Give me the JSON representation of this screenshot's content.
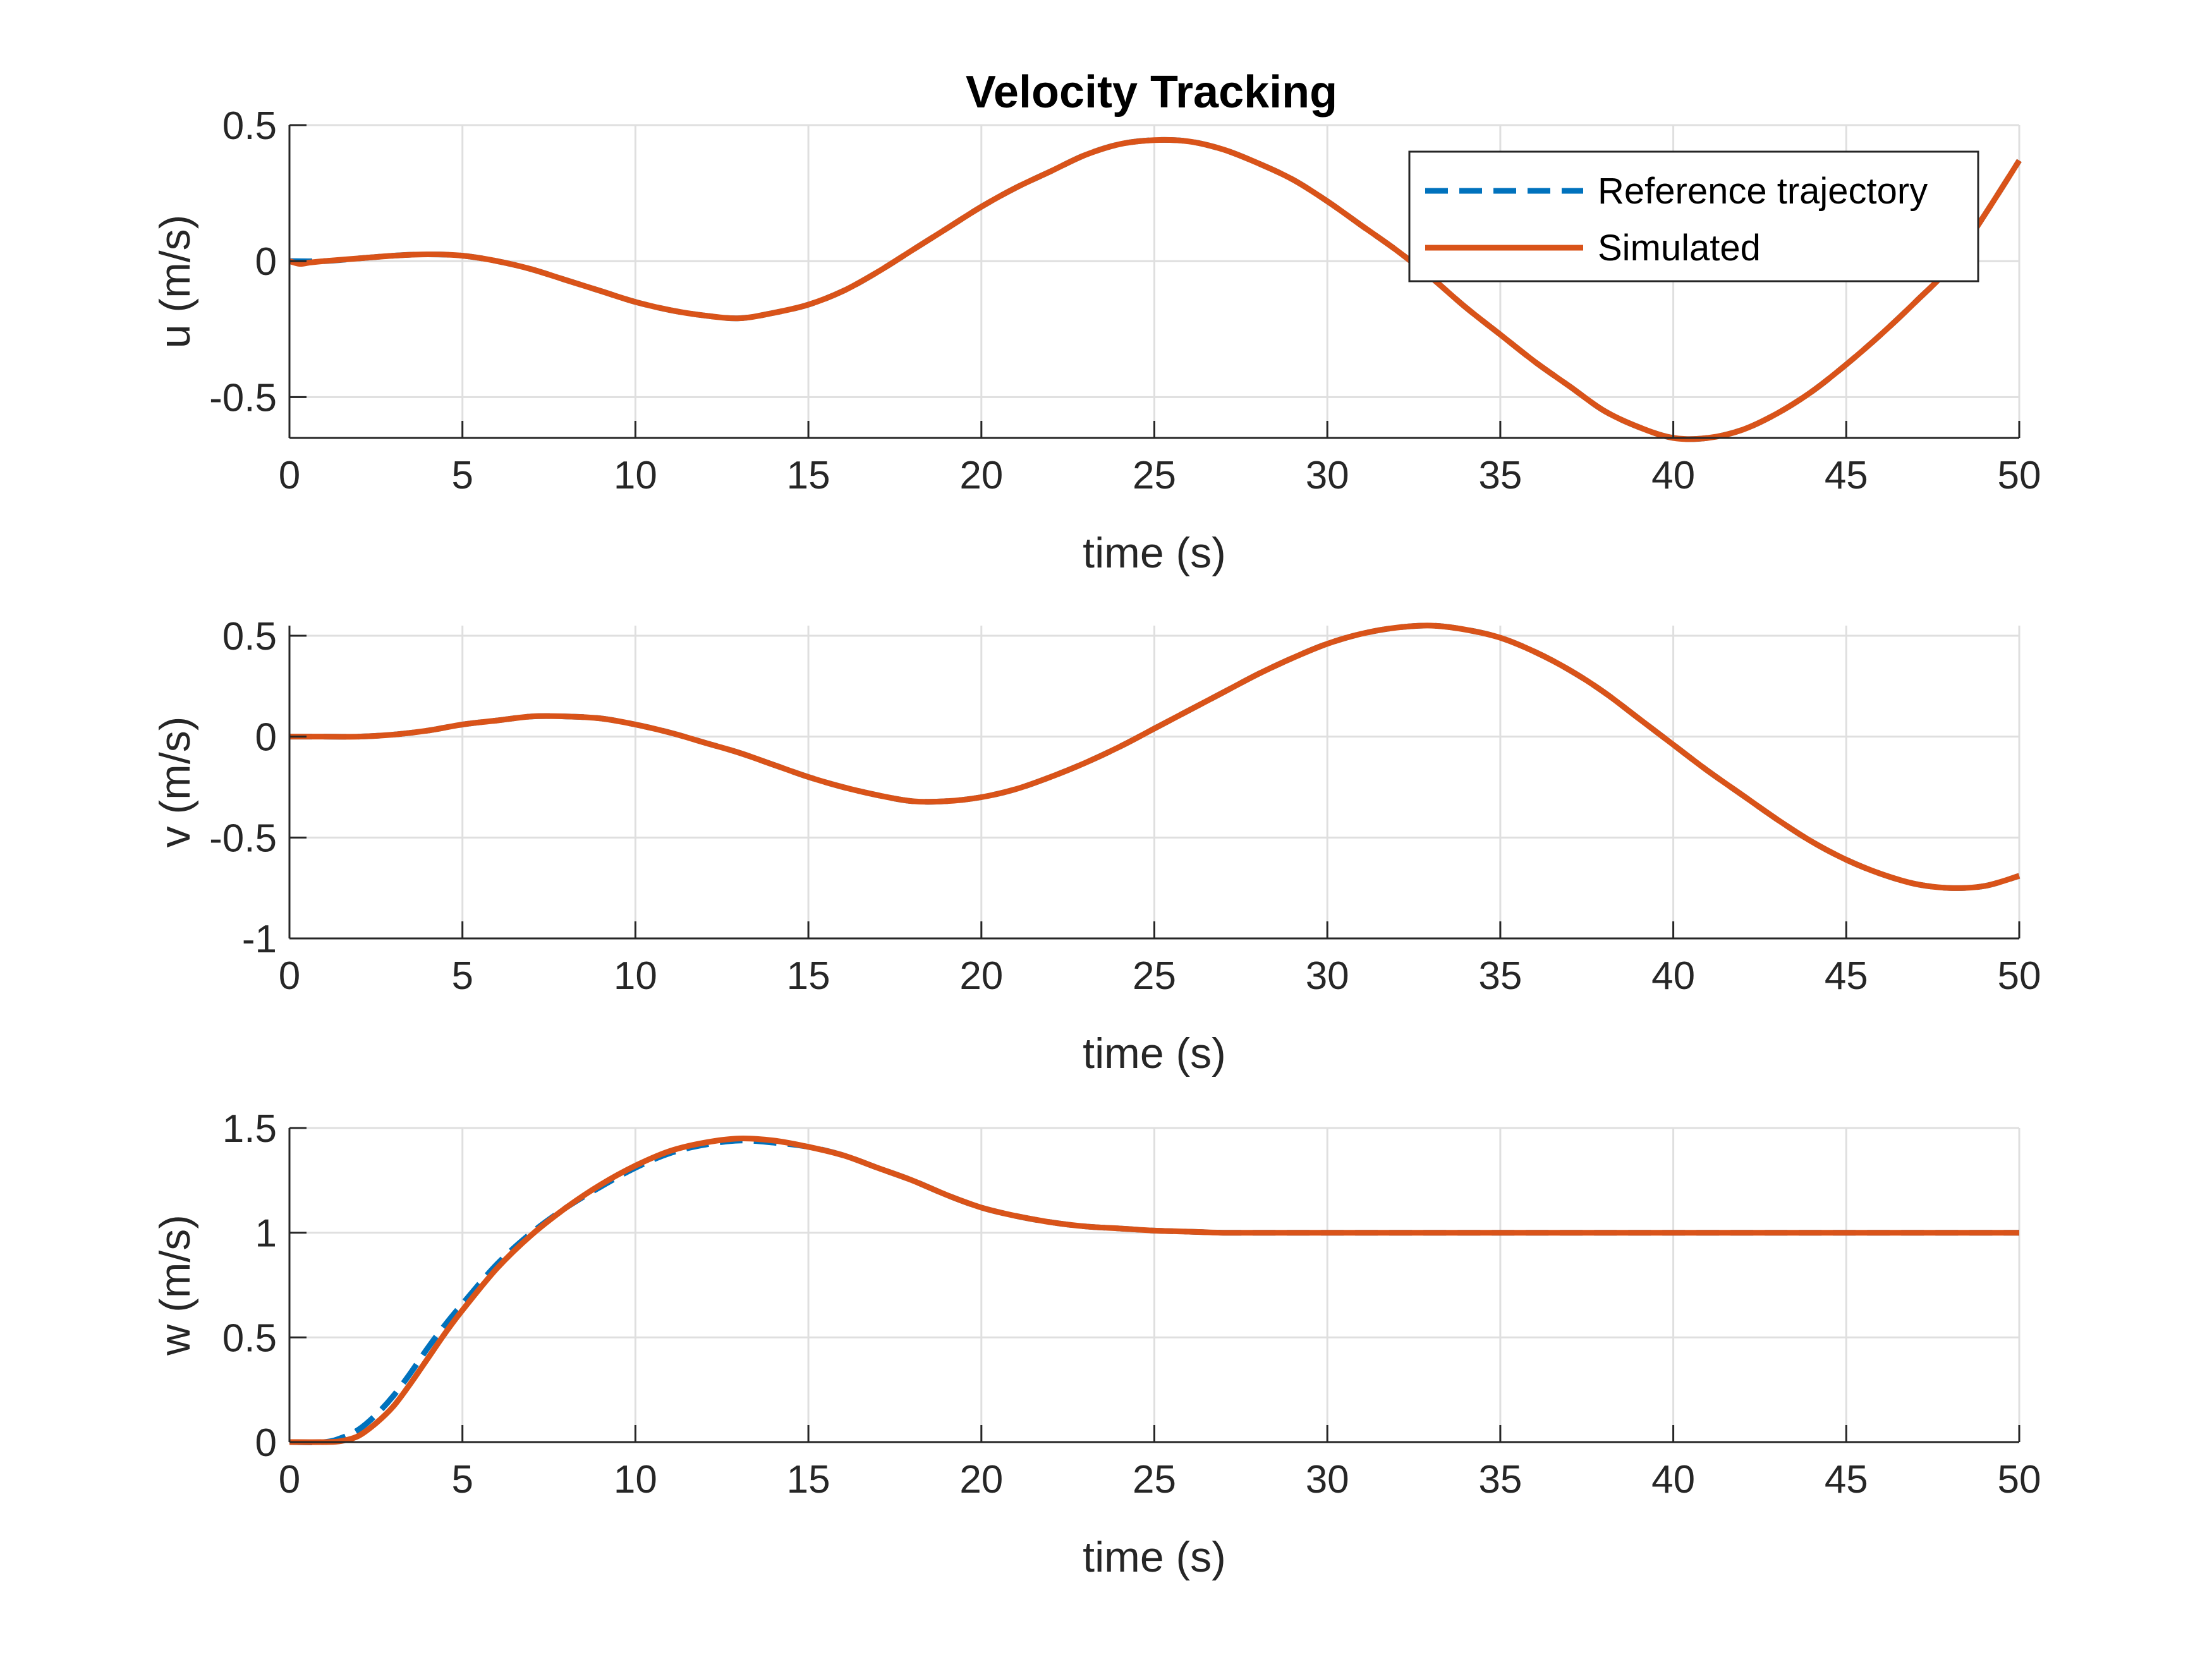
{
  "chart_data": [
    {
      "type": "line",
      "title": "Velocity Tracking",
      "xlabel": "time (s)",
      "ylabel": "u (m/s)",
      "xlim": [
        0,
        50
      ],
      "ylim": [
        -0.65,
        0.5
      ],
      "xticks": [
        "0",
        "5",
        "10",
        "15",
        "20",
        "25",
        "30",
        "35",
        "40",
        "45",
        "50"
      ],
      "yticks": [
        {
          "value": -0.5,
          "label": "-0.5"
        },
        {
          "value": 0,
          "label": "0"
        },
        {
          "value": 0.5,
          "label": "0.5"
        }
      ],
      "grid": true,
      "legend": {
        "placement": "top-right",
        "entries": [
          "Reference trajectory",
          "Simulated"
        ]
      },
      "series": [
        {
          "name": "Reference trajectory",
          "color": "#0072BD",
          "style": "dashed",
          "x": [
            0,
            1,
            2,
            3,
            4,
            5,
            6,
            7,
            8,
            9,
            10,
            11,
            12,
            13,
            14,
            15,
            16,
            17,
            18,
            19,
            20,
            21,
            22,
            23,
            24,
            25,
            26,
            27,
            28,
            29,
            30,
            31,
            32,
            33,
            34,
            35,
            36,
            37,
            38,
            39,
            40,
            41,
            42,
            43,
            44,
            45,
            46,
            47,
            48,
            49,
            50
          ],
          "y": [
            0,
            0.0,
            0.01,
            0.02,
            0.025,
            0.02,
            0.0,
            -0.03,
            -0.07,
            -0.11,
            -0.15,
            -0.18,
            -0.2,
            -0.21,
            -0.19,
            -0.16,
            -0.11,
            -0.04,
            0.04,
            0.12,
            0.2,
            0.27,
            0.33,
            0.39,
            0.43,
            0.445,
            0.44,
            0.41,
            0.36,
            0.3,
            0.22,
            0.13,
            0.04,
            -0.06,
            -0.17,
            -0.27,
            -0.37,
            -0.46,
            -0.55,
            -0.61,
            -0.65,
            -0.65,
            -0.62,
            -0.56,
            -0.48,
            -0.38,
            -0.27,
            -0.15,
            -0.02,
            0.17,
            0.37
          ]
        },
        {
          "name": "Simulated",
          "color": "#D95319",
          "style": "solid",
          "x": [
            0,
            0.3,
            0.6,
            1,
            2,
            3,
            4,
            5,
            6,
            7,
            8,
            9,
            10,
            11,
            12,
            13,
            14,
            15,
            16,
            17,
            18,
            19,
            20,
            21,
            22,
            23,
            24,
            25,
            26,
            27,
            28,
            29,
            30,
            31,
            32,
            33,
            34,
            35,
            36,
            37,
            38,
            39,
            40,
            41,
            42,
            43,
            44,
            45,
            46,
            47,
            48,
            49,
            50
          ],
          "y": [
            0,
            -0.01,
            -0.005,
            0.0,
            0.01,
            0.02,
            0.025,
            0.02,
            0.0,
            -0.03,
            -0.07,
            -0.11,
            -0.15,
            -0.18,
            -0.2,
            -0.21,
            -0.19,
            -0.16,
            -0.11,
            -0.04,
            0.04,
            0.12,
            0.2,
            0.27,
            0.33,
            0.39,
            0.43,
            0.445,
            0.44,
            0.41,
            0.36,
            0.3,
            0.22,
            0.13,
            0.04,
            -0.06,
            -0.17,
            -0.27,
            -0.37,
            -0.46,
            -0.55,
            -0.61,
            -0.65,
            -0.65,
            -0.62,
            -0.56,
            -0.48,
            -0.38,
            -0.27,
            -0.15,
            -0.02,
            0.17,
            0.37
          ]
        }
      ]
    },
    {
      "type": "line",
      "title": "",
      "xlabel": "time (s)",
      "ylabel": "v (m/s)",
      "xlim": [
        0,
        50
      ],
      "ylim": [
        -1,
        0.55
      ],
      "xticks": [
        "0",
        "5",
        "10",
        "15",
        "20",
        "25",
        "30",
        "35",
        "40",
        "45",
        "50"
      ],
      "yticks": [
        {
          "value": -1,
          "label": "-1"
        },
        {
          "value": -0.5,
          "label": "-0.5"
        },
        {
          "value": 0,
          "label": "0"
        },
        {
          "value": 0.5,
          "label": "0.5"
        }
      ],
      "grid": true,
      "series": [
        {
          "name": "Reference trajectory",
          "color": "#0072BD",
          "style": "dashed",
          "x": [
            0,
            1,
            2,
            3,
            4,
            5,
            6,
            7,
            8,
            9,
            10,
            11,
            12,
            13,
            14,
            15,
            16,
            17,
            18,
            19,
            20,
            21,
            22,
            23,
            24,
            25,
            26,
            27,
            28,
            29,
            30,
            31,
            32,
            33,
            34,
            35,
            36,
            37,
            38,
            39,
            40,
            41,
            42,
            43,
            44,
            45,
            46,
            47,
            48,
            49,
            50
          ],
          "y": [
            0,
            0.0,
            0.0,
            0.01,
            0.03,
            0.06,
            0.08,
            0.1,
            0.1,
            0.09,
            0.06,
            0.02,
            -0.03,
            -0.08,
            -0.14,
            -0.2,
            -0.25,
            -0.29,
            -0.32,
            -0.32,
            -0.3,
            -0.26,
            -0.2,
            -0.13,
            -0.05,
            0.04,
            0.13,
            0.22,
            0.31,
            0.39,
            0.46,
            0.51,
            0.54,
            0.55,
            0.53,
            0.49,
            0.42,
            0.33,
            0.22,
            0.09,
            -0.04,
            -0.17,
            -0.29,
            -0.41,
            -0.52,
            -0.61,
            -0.68,
            -0.73,
            -0.75,
            -0.74,
            -0.69
          ]
        },
        {
          "name": "Simulated",
          "color": "#D95319",
          "style": "solid",
          "x": [
            0,
            1,
            2,
            3,
            4,
            5,
            6,
            7,
            8,
            9,
            10,
            11,
            12,
            13,
            14,
            15,
            16,
            17,
            18,
            19,
            20,
            21,
            22,
            23,
            24,
            25,
            26,
            27,
            28,
            29,
            30,
            31,
            32,
            33,
            34,
            35,
            36,
            37,
            38,
            39,
            40,
            41,
            42,
            43,
            44,
            45,
            46,
            47,
            48,
            49,
            50
          ],
          "y": [
            0,
            0.0,
            0.0,
            0.01,
            0.03,
            0.06,
            0.08,
            0.1,
            0.1,
            0.09,
            0.06,
            0.02,
            -0.03,
            -0.08,
            -0.14,
            -0.2,
            -0.25,
            -0.29,
            -0.32,
            -0.32,
            -0.3,
            -0.26,
            -0.2,
            -0.13,
            -0.05,
            0.04,
            0.13,
            0.22,
            0.31,
            0.39,
            0.46,
            0.51,
            0.54,
            0.55,
            0.53,
            0.49,
            0.42,
            0.33,
            0.22,
            0.09,
            -0.04,
            -0.17,
            -0.29,
            -0.41,
            -0.52,
            -0.61,
            -0.68,
            -0.73,
            -0.75,
            -0.74,
            -0.69
          ]
        }
      ]
    },
    {
      "type": "line",
      "title": "",
      "xlabel": "time (s)",
      "ylabel": "w (m/s)",
      "xlim": [
        0,
        50
      ],
      "ylim": [
        0,
        1.5
      ],
      "xticks": [
        "0",
        "5",
        "10",
        "15",
        "20",
        "25",
        "30",
        "35",
        "40",
        "45",
        "50"
      ],
      "yticks": [
        {
          "value": 0,
          "label": "0"
        },
        {
          "value": 0.5,
          "label": "0.5"
        },
        {
          "value": 1,
          "label": "1"
        },
        {
          "value": 1.5,
          "label": "1.5"
        }
      ],
      "grid": true,
      "series": [
        {
          "name": "Reference trajectory",
          "color": "#0072BD",
          "style": "dashed",
          "x": [
            0,
            1,
            1.5,
            2,
            2.5,
            3,
            3.5,
            4,
            4.5,
            5,
            6,
            7,
            8,
            9,
            10,
            11,
            12,
            13,
            14,
            15,
            16,
            17,
            18,
            19,
            20,
            21,
            22,
            23,
            24,
            25,
            26,
            27,
            28,
            29,
            30,
            35,
            40,
            45,
            50
          ],
          "y": [
            0,
            0.0,
            0.02,
            0.06,
            0.13,
            0.22,
            0.33,
            0.45,
            0.56,
            0.66,
            0.85,
            1.0,
            1.12,
            1.22,
            1.31,
            1.38,
            1.42,
            1.44,
            1.43,
            1.41,
            1.37,
            1.31,
            1.25,
            1.18,
            1.12,
            1.08,
            1.05,
            1.03,
            1.02,
            1.01,
            1.005,
            1.0,
            1.0,
            1.0,
            1.0,
            1.0,
            1.0,
            1.0,
            1.0
          ]
        },
        {
          "name": "Simulated",
          "color": "#D95319",
          "style": "solid",
          "x": [
            0,
            1,
            1.5,
            2,
            2.5,
            3,
            3.5,
            4,
            4.5,
            5,
            6,
            7,
            8,
            9,
            10,
            11,
            12,
            13,
            14,
            15,
            16,
            17,
            18,
            19,
            20,
            21,
            22,
            23,
            24,
            25,
            26,
            27,
            28,
            29,
            30,
            35,
            40,
            45,
            50
          ],
          "y": [
            0,
            0.0,
            0.005,
            0.03,
            0.09,
            0.17,
            0.28,
            0.4,
            0.52,
            0.63,
            0.83,
            0.99,
            1.12,
            1.23,
            1.32,
            1.39,
            1.43,
            1.45,
            1.44,
            1.41,
            1.37,
            1.31,
            1.25,
            1.18,
            1.12,
            1.08,
            1.05,
            1.03,
            1.02,
            1.01,
            1.005,
            1.0,
            1.0,
            1.0,
            1.0,
            1.0,
            1.0,
            1.0,
            1.0
          ]
        }
      ]
    }
  ]
}
